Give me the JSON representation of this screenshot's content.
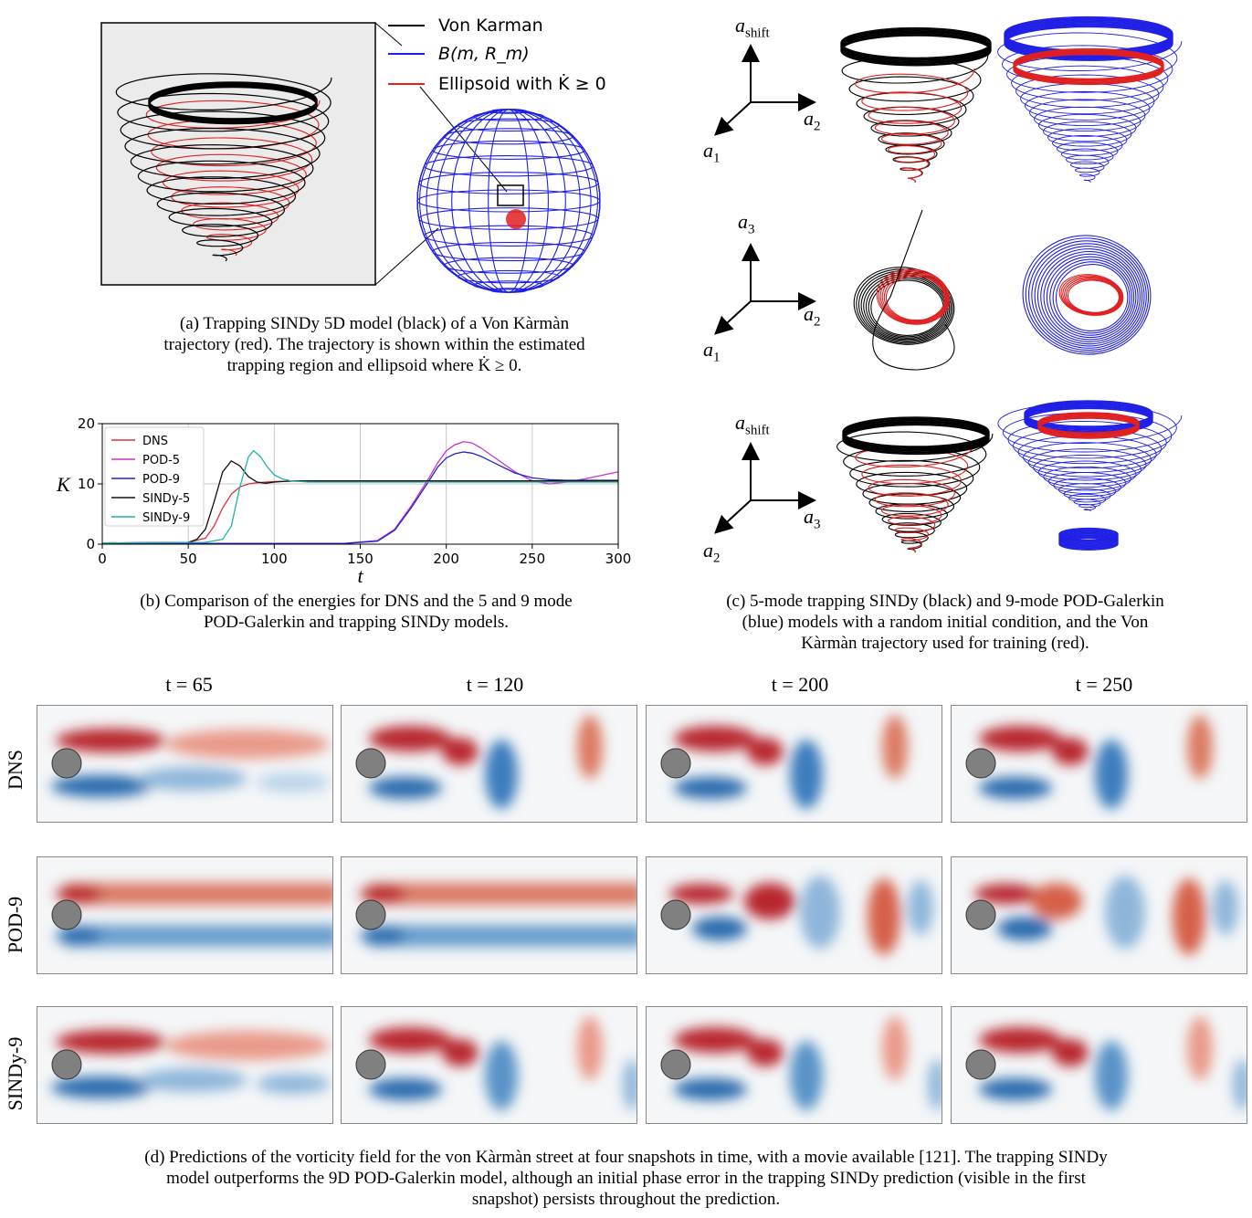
{
  "panel_a": {
    "legend": [
      {
        "label": "Von Karman",
        "color": "#000000"
      },
      {
        "label": "B(m, R_m)",
        "color": "#1f1fe6"
      },
      {
        "label": "Ellipsoid with K̇ ≥ 0",
        "color": "#e02020"
      }
    ],
    "caption_lines": [
      "(a) Trapping SINDy 5D model (black) of a Von Kàrmàn",
      "trajectory (red). The trajectory is shown within the estimated",
      "trapping region and ellipsoid where K̇ ≥ 0."
    ]
  },
  "panel_b": {
    "caption_lines": [
      "(b) Comparison of the energies for DNS and the 5 and 9 mode",
      "POD-Galerkin and trapping SINDy models."
    ]
  },
  "panel_c": {
    "rows": [
      {
        "vertical": "a",
        "vertical_sub": "shift",
        "right": "a",
        "right_sub": "2",
        "left": "a",
        "left_sub": "1"
      },
      {
        "vertical": "a",
        "vertical_sub": "3",
        "right": "a",
        "right_sub": "2",
        "left": "a",
        "left_sub": "1"
      },
      {
        "vertical": "a",
        "vertical_sub": "shift",
        "right": "a",
        "right_sub": "3",
        "left": "a",
        "left_sub": "2"
      }
    ],
    "caption_lines": [
      "(c) 5-mode trapping SINDy (black) and 9-mode POD-Galerkin",
      "(blue) models with a random initial condition, and the Von",
      "Kàrmàn trajectory used for training (red)."
    ]
  },
  "panel_d": {
    "times": [
      "t = 65",
      "t = 120",
      "t = 200",
      "t = 250"
    ],
    "rows": [
      "DNS",
      "POD-9",
      "SINDy-9"
    ],
    "caption_lines": [
      "(d) Predictions of the vorticity field for the von Kàrmàn street at four snapshots in time, with a movie available [121]. The trapping SINDy",
      "model outperforms the 9D POD-Galerkin model, although an initial phase error in the trapping SINDy prediction (visible in the first",
      "snapshot) persists throughout the prediction."
    ]
  },
  "chart_data": {
    "type": "line",
    "title": "",
    "xlabel": "t",
    "ylabel": "K",
    "xlim": [
      0,
      300
    ],
    "ylim": [
      0,
      20
    ],
    "xticks": [
      0,
      50,
      100,
      150,
      200,
      250,
      300
    ],
    "yticks": [
      0,
      10,
      20
    ],
    "grid": true,
    "legend_position": "left",
    "series": [
      {
        "name": "DNS",
        "color": "#e0303a",
        "x": [
          0,
          50,
          60,
          65,
          70,
          75,
          80,
          85,
          90,
          100,
          120,
          150,
          200,
          250,
          300
        ],
        "y": [
          0.2,
          0.3,
          1.0,
          3.0,
          6.0,
          8.3,
          9.5,
          10.0,
          10.2,
          10.4,
          10.5,
          10.5,
          10.5,
          10.5,
          10.5
        ]
      },
      {
        "name": "POD-5",
        "color": "#cc33cc",
        "x": [
          0,
          140,
          160,
          170,
          180,
          190,
          195,
          200,
          205,
          210,
          215,
          220,
          230,
          240,
          250,
          260,
          270,
          280,
          290,
          300
        ],
        "y": [
          0.1,
          0.1,
          0.6,
          2.5,
          6.5,
          11.0,
          13.5,
          15.5,
          16.5,
          17.0,
          16.8,
          16.0,
          14.0,
          12.0,
          10.5,
          10.0,
          10.3,
          10.8,
          11.4,
          12.0
        ]
      },
      {
        "name": "POD-9",
        "color": "#2222cc",
        "x": [
          0,
          140,
          160,
          170,
          180,
          190,
          195,
          200,
          205,
          210,
          215,
          220,
          230,
          240,
          250,
          260,
          270,
          280,
          290,
          300
        ],
        "y": [
          0.1,
          0.1,
          0.5,
          2.3,
          6.2,
          10.5,
          12.8,
          14.3,
          15.0,
          15.3,
          15.1,
          14.6,
          13.2,
          11.8,
          11.0,
          10.7,
          10.6,
          10.6,
          10.6,
          10.6
        ]
      },
      {
        "name": "SINDy-5",
        "color": "#111111",
        "x": [
          0,
          50,
          55,
          60,
          65,
          70,
          75,
          80,
          85,
          90,
          95,
          100,
          110,
          120,
          150,
          200,
          250,
          300
        ],
        "y": [
          0.2,
          0.3,
          0.8,
          2.5,
          7.0,
          12.0,
          13.8,
          13.0,
          11.2,
          10.3,
          10.1,
          10.3,
          10.5,
          10.5,
          10.5,
          10.5,
          10.5,
          10.5
        ]
      },
      {
        "name": "SINDy-9",
        "color": "#20b2aa",
        "x": [
          0,
          60,
          70,
          75,
          80,
          85,
          88,
          92,
          96,
          100,
          105,
          110,
          120,
          150,
          200,
          250,
          300
        ],
        "y": [
          0.2,
          0.3,
          0.8,
          3.0,
          9.5,
          14.5,
          15.5,
          14.5,
          12.8,
          11.5,
          10.8,
          10.5,
          10.3,
          10.3,
          10.3,
          10.3,
          10.3
        ]
      }
    ]
  }
}
